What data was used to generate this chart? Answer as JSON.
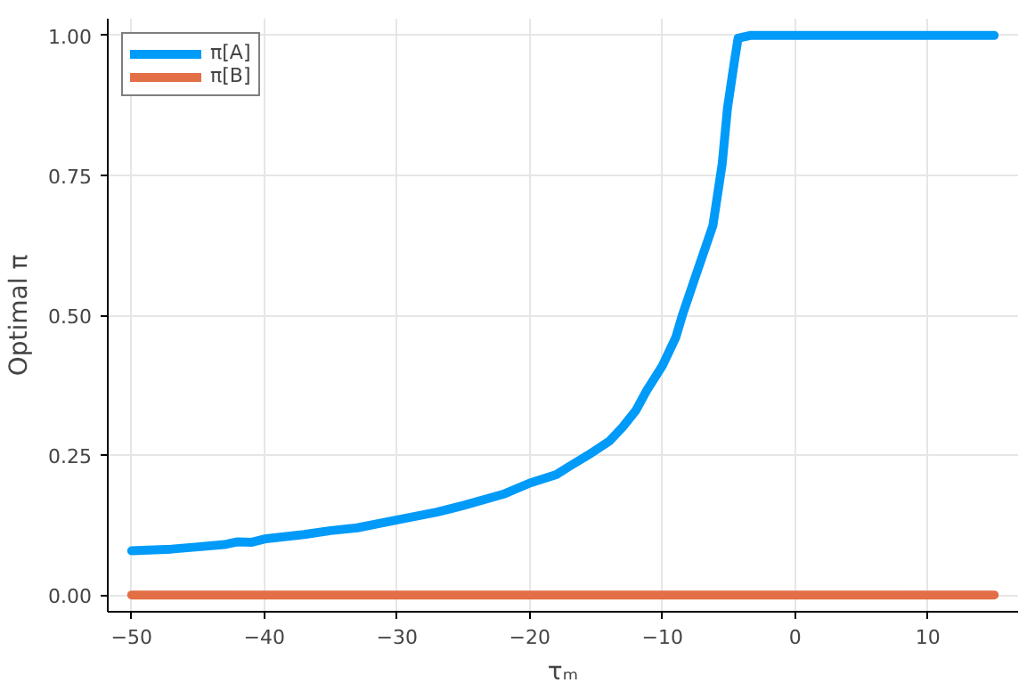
{
  "chart_data": {
    "type": "line",
    "xlabel": "τₘ",
    "ylabel": "Optimal π",
    "xlim": [
      -51.8,
      16.8
    ],
    "ylim": [
      -0.03,
      1.03
    ],
    "xticks": [
      -50,
      -40,
      -30,
      -20,
      -10,
      0,
      10
    ],
    "yticks": [
      {
        "value": 0,
        "label": "0.00"
      },
      {
        "value": 0.25,
        "label": "0.25"
      },
      {
        "value": 0.5,
        "label": "0.50"
      },
      {
        "value": 0.75,
        "label": "0.75"
      },
      {
        "value": 1,
        "label": "1.00"
      }
    ],
    "grid": true,
    "legend": "top left",
    "line_style": "solid",
    "marker": "none",
    "series": [
      {
        "name": "π[A]",
        "color": "#009af9",
        "x": [
          -50,
          -47,
          -45,
          -43,
          -42,
          -41,
          -40,
          -37,
          -35,
          -33,
          -30,
          -27,
          -25,
          -22,
          -20,
          -18,
          -17,
          -15.6,
          -14,
          -13,
          -12,
          -11.2,
          -10,
          -9,
          -8.5,
          -7.5,
          -6.2,
          -5.5,
          -5.1,
          -4.6,
          -4.3,
          -3.4,
          15
        ],
        "values": [
          0.079,
          0.082,
          0.086,
          0.09,
          0.095,
          0.094,
          0.1,
          0.108,
          0.115,
          0.12,
          0.134,
          0.148,
          0.16,
          0.18,
          0.2,
          0.215,
          0.23,
          0.25,
          0.275,
          0.3,
          0.33,
          0.365,
          0.41,
          0.46,
          0.5,
          0.57,
          0.66,
          0.77,
          0.87,
          0.95,
          0.995,
          1.0,
          1.0
        ]
      },
      {
        "name": "π[B]",
        "color": "#e26f46",
        "x": [
          -50,
          15
        ],
        "values": [
          0,
          0
        ]
      }
    ]
  }
}
